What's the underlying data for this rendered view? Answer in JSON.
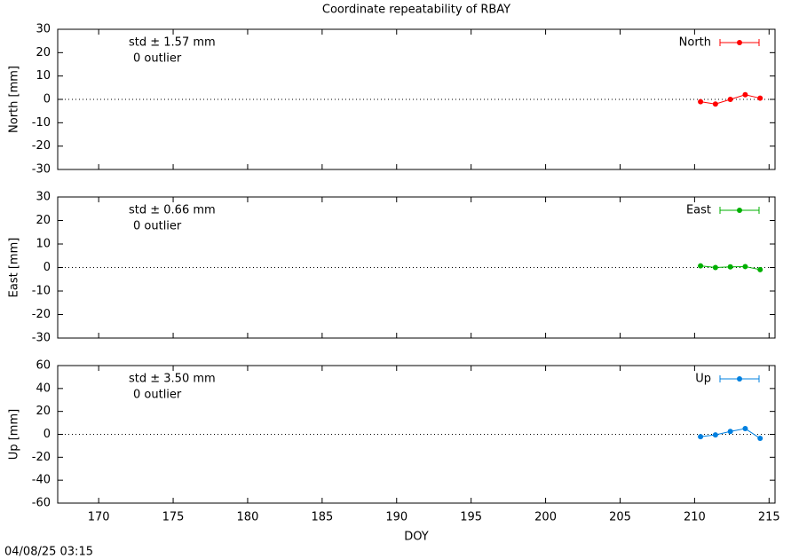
{
  "title": "Coordinate repeatability of RBAY",
  "timestamp": "04/08/25 03:15",
  "chart_data": [
    {
      "type": "line",
      "y_label": "North [mm]",
      "x": [
        210.4,
        211.4,
        212.4,
        213.4,
        214.4
      ],
      "series": [
        {
          "name": "North",
          "color": "#ff0000",
          "values": [
            -1,
            -2,
            0,
            2,
            0.5
          ]
        }
      ],
      "annotations": [
        "std ± 1.57 mm",
        "0 outlier"
      ],
      "xlim": [
        167.25,
        215.4
      ],
      "ylim": [
        -30,
        30
      ],
      "yticks": [
        -30,
        -20,
        -10,
        0,
        10,
        20,
        30
      ],
      "zero_line": true
    },
    {
      "type": "line",
      "y_label": "East [mm]",
      "x": [
        210.4,
        211.4,
        212.4,
        213.4,
        214.4
      ],
      "series": [
        {
          "name": "East",
          "color": "#00b000",
          "values": [
            0.7,
            0,
            0.3,
            0.4,
            -0.9
          ]
        }
      ],
      "annotations": [
        "std ± 0.66 mm",
        "0 outlier"
      ],
      "xlim": [
        167.25,
        215.4
      ],
      "ylim": [
        -30,
        30
      ],
      "yticks": [
        -30,
        -20,
        -10,
        0,
        10,
        20,
        30
      ],
      "zero_line": true
    },
    {
      "type": "line",
      "y_label": "Up [mm]",
      "x_label": "DOY",
      "x": [
        210.4,
        211.4,
        212.4,
        213.4,
        214.4
      ],
      "series": [
        {
          "name": "Up",
          "color": "#0080e0",
          "values": [
            -2,
            -0.5,
            2.5,
            5,
            -3.5
          ]
        }
      ],
      "annotations": [
        "std ± 3.50 mm",
        "0 outlier"
      ],
      "xlim": [
        167.25,
        215.4
      ],
      "xticks": [
        170,
        175,
        180,
        185,
        190,
        195,
        200,
        205,
        210,
        215
      ],
      "ylim": [
        -60,
        60
      ],
      "yticks": [
        -60,
        -40,
        -20,
        0,
        20,
        40,
        60
      ],
      "zero_line": true
    }
  ]
}
